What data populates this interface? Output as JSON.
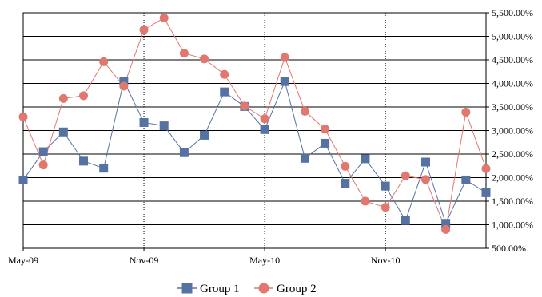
{
  "chart_data": {
    "type": "line",
    "x": [
      "2009-05",
      "2009-06",
      "2009-07",
      "2009-08",
      "2009-09",
      "2009-10",
      "2009-11",
      "2009-12",
      "2010-01",
      "2010-02",
      "2010-03",
      "2010-04",
      "2010-05",
      "2010-06",
      "2010-07",
      "2010-08",
      "2010-09",
      "2010-10",
      "2010-11",
      "2010-12",
      "2011-01",
      "2011-02",
      "2011-03",
      "2011-04"
    ],
    "x_tick_labels": [
      {
        "x": "2009-05",
        "label": "May-09"
      },
      {
        "x": "2009-11",
        "label": "Nov-09"
      },
      {
        "x": "2010-05",
        "label": "May-10"
      },
      {
        "x": "2010-11",
        "label": "Nov-10"
      }
    ],
    "y_ticks": [
      500,
      1000,
      1500,
      2000,
      2500,
      3000,
      3500,
      4000,
      4500,
      5000,
      5500
    ],
    "y_tick_labels": [
      "500.00%",
      "1,000.00%",
      "1,500.00%",
      "2,000.00%",
      "2,500.00%",
      "3,000.00%",
      "3,500.00%",
      "4,000.00%",
      "4,500.00%",
      "5,000.00%",
      "5,500.00%"
    ],
    "ylim": [
      500,
      5500
    ],
    "y_axis_position": "right",
    "grid": {
      "horizontal": "solid",
      "vertical": "dotted"
    },
    "legend_position": "bottom",
    "series": [
      {
        "name": "Group 1",
        "color": "#5572a3",
        "marker": "square",
        "values": [
          1950,
          2550,
          2970,
          2350,
          2200,
          4050,
          3170,
          3100,
          2530,
          2900,
          3820,
          3510,
          3020,
          4040,
          2410,
          2730,
          1880,
          2400,
          1820,
          1090,
          2330,
          1030,
          1950,
          1680
        ]
      },
      {
        "name": "Group 2",
        "color": "#e07870",
        "marker": "circle",
        "values": [
          3290,
          2270,
          3680,
          3740,
          4460,
          3940,
          5140,
          5390,
          4640,
          4520,
          4190,
          3520,
          3250,
          4550,
          3410,
          3030,
          2240,
          1500,
          1370,
          2040,
          1960,
          900,
          3390,
          2190
        ]
      }
    ]
  }
}
